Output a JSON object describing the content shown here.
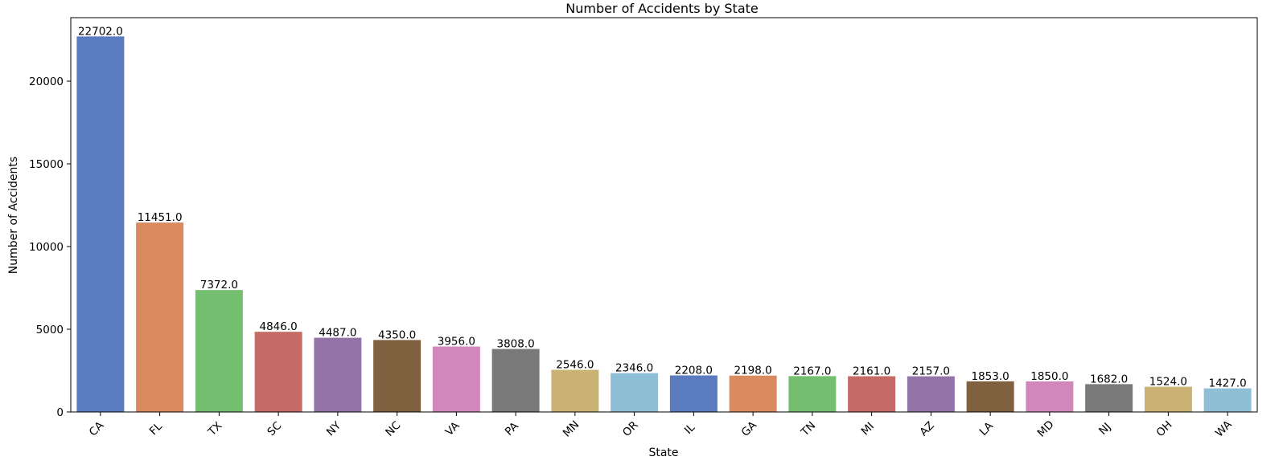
{
  "chart_data": {
    "type": "bar",
    "title": "Number of Accidents by State",
    "xlabel": "State",
    "ylabel": "Number of Accidents",
    "categories": [
      "CA",
      "FL",
      "TX",
      "SC",
      "NY",
      "NC",
      "VA",
      "PA",
      "MN",
      "OR",
      "IL",
      "GA",
      "TN",
      "MI",
      "AZ",
      "LA",
      "MD",
      "NJ",
      "OH",
      "WA"
    ],
    "values": [
      22702.0,
      11451.0,
      7372.0,
      4846.0,
      4487.0,
      4350.0,
      3956.0,
      3808.0,
      2546.0,
      2346.0,
      2208.0,
      2198.0,
      2167.0,
      2161.0,
      2157.0,
      1853.0,
      1850.0,
      1682.0,
      1524.0,
      1427.0
    ],
    "data_labels": [
      "22702.0",
      "11451.0",
      "7372.0",
      "4846.0",
      "4487.0",
      "4350.0",
      "3956.0",
      "3808.0",
      "2546.0",
      "2346.0",
      "2208.0",
      "2198.0",
      "2167.0",
      "2161.0",
      "2157.0",
      "1853.0",
      "1850.0",
      "1682.0",
      "1524.0",
      "1427.0"
    ],
    "ylim": [
      0,
      23837
    ],
    "yticks": [
      0,
      5000,
      10000,
      15000,
      20000
    ],
    "ytick_labels": [
      "0",
      "5000",
      "10000",
      "15000",
      "20000"
    ],
    "grid": false,
    "legend": "none",
    "colors": [
      "#5a7bbf",
      "#d98a5e",
      "#74bf6f",
      "#c66a66",
      "#9473a8",
      "#80613f",
      "#d287bc",
      "#797979",
      "#c9b274",
      "#8ebfd6"
    ]
  }
}
